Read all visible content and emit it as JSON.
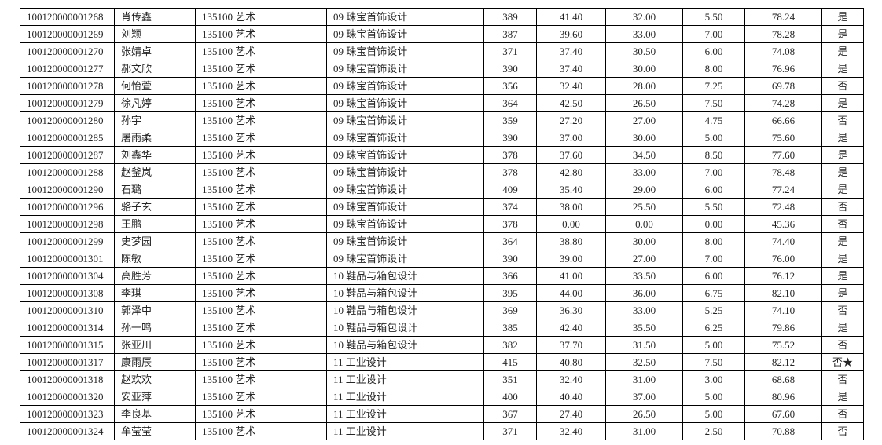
{
  "colors": {
    "background": "#ffffff",
    "border": "#000000",
    "text": "#262626"
  },
  "table": {
    "description": "admission-score-list",
    "rows": [
      {
        "id": "100120000001268",
        "name": "肖传鑫",
        "major": "135100 艺术",
        "direction": "09 珠宝首饰设计",
        "s1": "389",
        "s2": "41.40",
        "s3": "32.00",
        "s4": "5.50",
        "total": "78.24",
        "admitted": "是"
      },
      {
        "id": "100120000001269",
        "name": "刘颖",
        "major": "135100 艺术",
        "direction": "09 珠宝首饰设计",
        "s1": "387",
        "s2": "39.60",
        "s3": "33.00",
        "s4": "7.00",
        "total": "78.28",
        "admitted": "是"
      },
      {
        "id": "100120000001270",
        "name": "张婧卓",
        "major": "135100 艺术",
        "direction": "09 珠宝首饰设计",
        "s1": "371",
        "s2": "37.40",
        "s3": "30.50",
        "s4": "6.00",
        "total": "74.08",
        "admitted": "是"
      },
      {
        "id": "100120000001277",
        "name": "郝文欣",
        "major": "135100 艺术",
        "direction": "09 珠宝首饰设计",
        "s1": "390",
        "s2": "37.40",
        "s3": "30.00",
        "s4": "8.00",
        "total": "76.96",
        "admitted": "是"
      },
      {
        "id": "100120000001278",
        "name": "何怡萱",
        "major": "135100 艺术",
        "direction": "09 珠宝首饰设计",
        "s1": "356",
        "s2": "32.40",
        "s3": "28.00",
        "s4": "7.25",
        "total": "69.78",
        "admitted": "否"
      },
      {
        "id": "100120000001279",
        "name": "徐凡婷",
        "major": "135100 艺术",
        "direction": "09 珠宝首饰设计",
        "s1": "364",
        "s2": "42.50",
        "s3": "26.50",
        "s4": "7.50",
        "total": "74.28",
        "admitted": "是"
      },
      {
        "id": "100120000001280",
        "name": "孙宇",
        "major": "135100 艺术",
        "direction": "09 珠宝首饰设计",
        "s1": "359",
        "s2": "27.20",
        "s3": "27.00",
        "s4": "4.75",
        "total": "66.66",
        "admitted": "否"
      },
      {
        "id": "100120000001285",
        "name": "屠雨柔",
        "major": "135100 艺术",
        "direction": "09 珠宝首饰设计",
        "s1": "390",
        "s2": "37.00",
        "s3": "30.00",
        "s4": "5.00",
        "total": "75.60",
        "admitted": "是"
      },
      {
        "id": "100120000001287",
        "name": "刘鑫华",
        "major": "135100 艺术",
        "direction": "09 珠宝首饰设计",
        "s1": "378",
        "s2": "37.60",
        "s3": "34.50",
        "s4": "8.50",
        "total": "77.60",
        "admitted": "是"
      },
      {
        "id": "100120000001288",
        "name": "赵釜岚",
        "major": "135100 艺术",
        "direction": "09 珠宝首饰设计",
        "s1": "378",
        "s2": "42.80",
        "s3": "33.00",
        "s4": "7.00",
        "total": "78.48",
        "admitted": "是"
      },
      {
        "id": "100120000001290",
        "name": "石璐",
        "major": "135100 艺术",
        "direction": "09 珠宝首饰设计",
        "s1": "409",
        "s2": "35.40",
        "s3": "29.00",
        "s4": "6.00",
        "total": "77.24",
        "admitted": "是"
      },
      {
        "id": "100120000001296",
        "name": "骆子玄",
        "major": "135100 艺术",
        "direction": "09 珠宝首饰设计",
        "s1": "374",
        "s2": "38.00",
        "s3": "25.50",
        "s4": "5.50",
        "total": "72.48",
        "admitted": "否"
      },
      {
        "id": "100120000001298",
        "name": "王鹏",
        "major": "135100 艺术",
        "direction": "09 珠宝首饰设计",
        "s1": "378",
        "s2": "0.00",
        "s3": "0.00",
        "s4": "0.00",
        "total": "45.36",
        "admitted": "否"
      },
      {
        "id": "100120000001299",
        "name": "史梦园",
        "major": "135100 艺术",
        "direction": "09 珠宝首饰设计",
        "s1": "364",
        "s2": "38.80",
        "s3": "30.00",
        "s4": "8.00",
        "total": "74.40",
        "admitted": "是"
      },
      {
        "id": "100120000001301",
        "name": "陈敏",
        "major": "135100 艺术",
        "direction": "09 珠宝首饰设计",
        "s1": "390",
        "s2": "39.00",
        "s3": "27.00",
        "s4": "7.00",
        "total": "76.00",
        "admitted": "是"
      },
      {
        "id": "100120000001304",
        "name": "高胜芳",
        "major": "135100 艺术",
        "direction": "10 鞋品与箱包设计",
        "s1": "366",
        "s2": "41.00",
        "s3": "33.50",
        "s4": "6.00",
        "total": "76.12",
        "admitted": "是"
      },
      {
        "id": "100120000001308",
        "name": "李琪",
        "major": "135100 艺术",
        "direction": "10 鞋品与箱包设计",
        "s1": "395",
        "s2": "44.00",
        "s3": "36.00",
        "s4": "6.75",
        "total": "82.10",
        "admitted": "是"
      },
      {
        "id": "100120000001310",
        "name": "郭泽中",
        "major": "135100 艺术",
        "direction": "10 鞋品与箱包设计",
        "s1": "369",
        "s2": "36.30",
        "s3": "33.00",
        "s4": "5.25",
        "total": "74.10",
        "admitted": "否"
      },
      {
        "id": "100120000001314",
        "name": "孙一鸣",
        "major": "135100 艺术",
        "direction": "10 鞋品与箱包设计",
        "s1": "385",
        "s2": "42.40",
        "s3": "35.50",
        "s4": "6.25",
        "total": "79.86",
        "admitted": "是"
      },
      {
        "id": "100120000001315",
        "name": "张亚川",
        "major": "135100 艺术",
        "direction": "10 鞋品与箱包设计",
        "s1": "382",
        "s2": "37.70",
        "s3": "31.50",
        "s4": "5.00",
        "total": "75.52",
        "admitted": "否"
      },
      {
        "id": "100120000001317",
        "name": "康雨辰",
        "major": "135100 艺术",
        "direction": "11 工业设计",
        "s1": "415",
        "s2": "40.80",
        "s3": "32.50",
        "s4": "7.50",
        "total": "82.12",
        "admitted": "否★"
      },
      {
        "id": "100120000001318",
        "name": "赵欢欢",
        "major": "135100 艺术",
        "direction": "11 工业设计",
        "s1": "351",
        "s2": "32.40",
        "s3": "31.00",
        "s4": "3.00",
        "total": "68.68",
        "admitted": "否"
      },
      {
        "id": "100120000001320",
        "name": "安亚萍",
        "major": "135100 艺术",
        "direction": "11 工业设计",
        "s1": "400",
        "s2": "40.40",
        "s3": "37.00",
        "s4": "5.00",
        "total": "80.96",
        "admitted": "是"
      },
      {
        "id": "100120000001323",
        "name": "李良基",
        "major": "135100 艺术",
        "direction": "11 工业设计",
        "s1": "367",
        "s2": "27.40",
        "s3": "26.50",
        "s4": "5.00",
        "total": "67.60",
        "admitted": "否"
      },
      {
        "id": "100120000001324",
        "name": "牟莹莹",
        "major": "135100 艺术",
        "direction": "11 工业设计",
        "s1": "371",
        "s2": "32.40",
        "s3": "31.00",
        "s4": "2.50",
        "total": "70.88",
        "admitted": "否"
      }
    ]
  }
}
